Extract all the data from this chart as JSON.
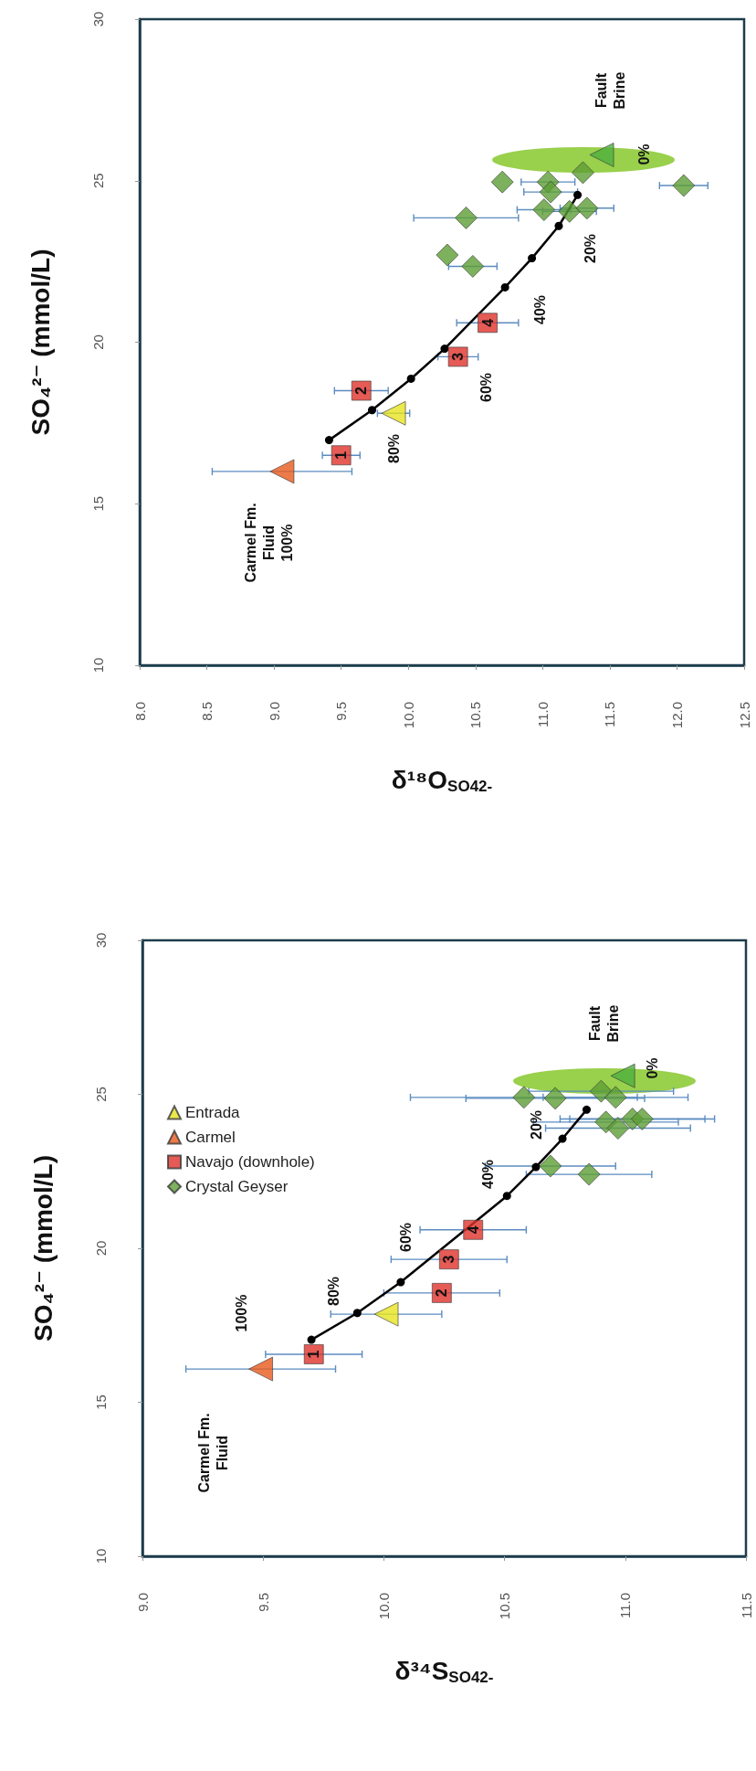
{
  "chart_data": [
    {
      "type": "scatter",
      "xlabel": "δ¹⁸O$_{SO42-}$",
      "ylabel": "SO₄²⁻ (mmol/L)",
      "xlim": [
        8,
        12.5
      ],
      "xticks": [
        {
          "value": 8,
          "label": "8.0"
        },
        8.5,
        {
          "value": 9,
          "label": "9.0"
        },
        9.5,
        {
          "value": 10,
          "label": "10.0"
        },
        10.5,
        {
          "value": 11,
          "label": "11.0"
        },
        11.5,
        {
          "value": 12,
          "label": "12.0"
        },
        12.5
      ],
      "ylim": [
        10,
        30
      ],
      "yticks": [
        10,
        15,
        20,
        25,
        30
      ],
      "grid": false,
      "legend": false,
      "series": [
        {
          "type": "line",
          "color": "#000000",
          "marker": "circle",
          "line_style": "solid",
          "x": [
            9.41,
            9.73,
            10.02,
            10.27,
            10.72,
            10.92,
            11.12,
            11.26
          ],
          "values": [
            16.97,
            17.9,
            18.87,
            19.8,
            21.7,
            22.6,
            23.6,
            24.56
          ]
        },
        {
          "color": "#e6e31e",
          "marker": "triangle",
          "x": [
            9.89
          ],
          "values": [
            17.8
          ],
          "xerrors": [
            0.12
          ]
        },
        {
          "color": "#e85a1c",
          "marker": "triangle",
          "x": [
            9.06
          ],
          "values": [
            16.0
          ],
          "xerrors": [
            0.52
          ]
        },
        {
          "color": "#e0322a",
          "marker": "square",
          "x": [
            9.5,
            9.65,
            10.37,
            10.59
          ],
          "values": [
            16.5,
            18.5,
            19.55,
            20.6
          ],
          "xerrors": [
            0.14,
            0.2,
            0.15,
            0.23
          ]
        },
        {
          "color": "#5c9e34",
          "marker": "diamond",
          "x": [
            10.7,
            10.43,
            10.29,
            10.48,
            11.04,
            11.06,
            11.01,
            11.2,
            11.33,
            11.3,
            12.05
          ],
          "values": [
            24.96,
            23.85,
            22.7,
            22.35,
            24.96,
            24.65,
            24.1,
            24.05,
            24.15,
            25.25,
            24.85
          ],
          "xerrors": [
            null,
            0.39,
            null,
            0.18,
            0.2,
            0.2,
            0.2,
            0.2,
            0.2,
            null,
            0.18
          ]
        },
        {
          "color": "#4caf3c",
          "marker": "triangle",
          "x": [
            11.44
          ],
          "values": [
            25.8
          ]
        }
      ],
      "annotations": [
        "Carmel Fm.\nFluid\n100%",
        "80%",
        "60%",
        "40%",
        "20%",
        "Fault\nBrine",
        "0%",
        {
          "text": "1",
          "x": 9.5,
          "y": 16.5
        },
        {
          "text": "2",
          "x": 9.65,
          "y": 18.5
        },
        {
          "text": "3",
          "x": 10.37,
          "y": 19.55
        },
        {
          "text": "4",
          "x": 10.59,
          "y": 20.6
        }
      ]
    },
    {
      "type": "scatter",
      "xlabel": "δ³⁴S$_{SO42-}$",
      "ylabel": "SO₄²⁻ (mmol/L)",
      "xlim": [
        9,
        11.5
      ],
      "xticks": [
        {
          "value": 9,
          "label": "9.0"
        },
        9.5,
        {
          "value": 10,
          "label": "10.0"
        },
        10.5,
        {
          "value": 11,
          "label": "11.0"
        },
        11.5
      ],
      "ylim": [
        10,
        30
      ],
      "yticks": [
        10,
        15,
        20,
        25,
        30
      ],
      "grid": false,
      "legend": "top left",
      "series": [
        {
          "type": "line",
          "color": "#000000",
          "marker": "circle",
          "line_style": "solid",
          "x": [
            9.7,
            9.89,
            10.07,
            10.51,
            10.63,
            10.74,
            10.84
          ],
          "values": [
            17.03,
            17.9,
            18.9,
            21.7,
            22.64,
            23.56,
            24.5
          ]
        },
        {
          "name": "Entrada",
          "color": "#e6e31e",
          "marker": "triangle",
          "x": [
            10.01
          ],
          "values": [
            17.86
          ],
          "xerrors": [
            0.23
          ]
        },
        {
          "name": "Carmel",
          "color": "#e85a1c",
          "marker": "triangle",
          "x": [
            9.49
          ],
          "values": [
            16.08
          ],
          "xerrors": [
            0.31
          ]
        },
        {
          "name": "Navajo (downhole)",
          "color": "#e0322a",
          "marker": "square",
          "x": [
            9.71,
            10.24,
            10.27,
            10.37
          ],
          "values": [
            16.56,
            18.55,
            19.64,
            20.6
          ],
          "xerrors": [
            0.2,
            0.24,
            0.24,
            0.22
          ]
        },
        {
          "name": "Crystal Geyser",
          "color": "#5c9e34",
          "marker": "diamond",
          "x": [
            10.58,
            10.71,
            10.9,
            10.96,
            10.92,
            10.97,
            11.03,
            11.07,
            10.69,
            10.85
          ],
          "values": [
            24.9,
            24.87,
            25.1,
            24.9,
            24.1,
            23.9,
            24.2,
            24.2,
            22.67,
            22.4
          ],
          "xerrors": [
            0.47,
            0.37,
            0.3,
            0.3,
            0.3,
            0.3,
            0.3,
            0.3,
            0.27,
            0.26
          ]
        },
        {
          "color": "#4caf3c",
          "marker": "triangle",
          "x": [
            10.99
          ],
          "values": [
            25.6
          ]
        }
      ],
      "annotations": [
        "Carmel Fm.\nFluid",
        "100%",
        "80%",
        "60%",
        "40%",
        "20%",
        "Fault\nBrine",
        "0%",
        {
          "text": "1",
          "x": 9.71,
          "y": 16.56
        },
        {
          "text": "2",
          "x": 10.24,
          "y": 18.55
        },
        {
          "text": "3",
          "x": 10.27,
          "y": 19.64
        },
        {
          "text": "4",
          "x": 10.37,
          "y": 20.6
        }
      ]
    }
  ]
}
